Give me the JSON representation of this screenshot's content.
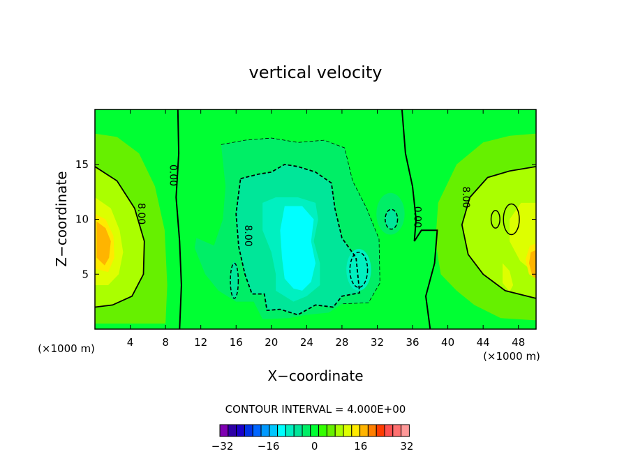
{
  "chart_data": {
    "type": "contour",
    "title": "vertical velocity",
    "xlabel": "X−coordinate",
    "ylabel": "Z−coordinate",
    "x_unit_left": "(×1000 m)",
    "x_unit_right": "(×1000 m)",
    "xlim": [
      0,
      50
    ],
    "ylim": [
      0,
      20
    ],
    "x_ticks": [
      4,
      8,
      12,
      16,
      20,
      24,
      28,
      32,
      36,
      40,
      44,
      48
    ],
    "y_ticks": [
      5,
      10,
      15
    ],
    "contour_interval_text": "CONTOUR INTERVAL = 4.000E+00",
    "contour_labels": [
      {
        "text": "0.00",
        "x": 8.5,
        "y": 14.0
      },
      {
        "text": "8.00",
        "x": 4.9,
        "y": 10.5
      },
      {
        "text": "8.00",
        "x": 17.0,
        "y": 8.5
      },
      {
        "text": "0.00",
        "x": 36.2,
        "y": 10.2
      },
      {
        "text": "8.00",
        "x": 41.7,
        "y": 12.0
      }
    ],
    "colorbar": {
      "colors": [
        "#7f00b2",
        "#2d00a6",
        "#1a00c8",
        "#0033e6",
        "#0066ff",
        "#0099ff",
        "#00c6ff",
        "#00ffff",
        "#00f0c0",
        "#00e699",
        "#00ee66",
        "#00ff33",
        "#33ff00",
        "#66f000",
        "#aaff00",
        "#ddff00",
        "#ffea00",
        "#ffb400",
        "#ff7f00",
        "#ff3c00",
        "#ff5050",
        "#ff7070",
        "#ff9999"
      ],
      "tick_labels": [
        "−32",
        "−16",
        "0",
        "16",
        "32"
      ]
    },
    "fields": {
      "background": "#00ff33",
      "pos8": "#66f000",
      "pos12": "#aaff00",
      "pos16": "#ddff00",
      "pos20": "#ffea00",
      "pos24": "#ffb400",
      "neg4": "#00ee66",
      "neg8": "#00e699",
      "neg12": "#00f0c0",
      "neg16": "#00ffff"
    }
  }
}
